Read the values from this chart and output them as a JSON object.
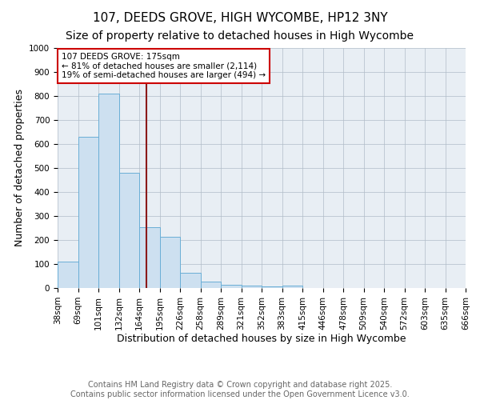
{
  "title": "107, DEEDS GROVE, HIGH WYCOMBE, HP12 3NY",
  "subtitle": "Size of property relative to detached houses in High Wycombe",
  "xlabel": "Distribution of detached houses by size in High Wycombe",
  "ylabel": "Number of detached properties",
  "bins": [
    "38sqm",
    "69sqm",
    "101sqm",
    "132sqm",
    "164sqm",
    "195sqm",
    "226sqm",
    "258sqm",
    "289sqm",
    "321sqm",
    "352sqm",
    "383sqm",
    "415sqm",
    "446sqm",
    "478sqm",
    "509sqm",
    "540sqm",
    "572sqm",
    "603sqm",
    "635sqm",
    "666sqm"
  ],
  "values": [
    110,
    630,
    810,
    480,
    255,
    215,
    65,
    28,
    15,
    10,
    8,
    10,
    0,
    0,
    0,
    0,
    0,
    0,
    0,
    0
  ],
  "bar_color": "#cde0f0",
  "bar_edge_color": "#6aaed6",
  "vline_x_index": 4.35,
  "vline_color": "#8b1a1a",
  "annotation_text": "107 DEEDS GROVE: 175sqm\n← 81% of detached houses are smaller (2,114)\n19% of semi-detached houses are larger (494) →",
  "annotation_box_color": "#cc0000",
  "ylim": [
    0,
    1000
  ],
  "yticks": [
    0,
    100,
    200,
    300,
    400,
    500,
    600,
    700,
    800,
    900,
    1000
  ],
  "background_color": "#e8eef4",
  "footer_line1": "Contains HM Land Registry data © Crown copyright and database right 2025.",
  "footer_line2": "Contains public sector information licensed under the Open Government Licence v3.0.",
  "title_fontsize": 11,
  "subtitle_fontsize": 10,
  "axis_label_fontsize": 9,
  "tick_fontsize": 7.5,
  "annotation_fontsize": 7.5,
  "footer_fontsize": 7
}
